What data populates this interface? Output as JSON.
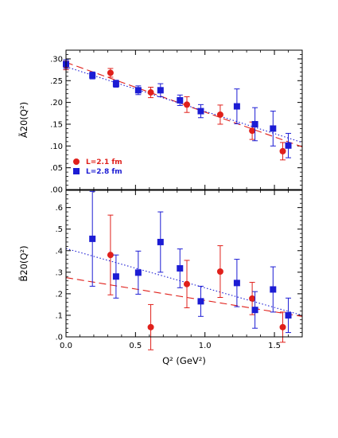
{
  "chart_data": [
    {
      "type": "scatter",
      "panel": "top",
      "ylabel": "Ã20(Q²)",
      "xlim": [
        0,
        1.7
      ],
      "ylim": [
        0,
        0.32
      ],
      "yticks": [
        0,
        0.05,
        0.1,
        0.15,
        0.2,
        0.25,
        0.3
      ],
      "ytick_labels": [
        ".00",
        ".05",
        ".10",
        ".15",
        ".20",
        ".25",
        ".30"
      ],
      "legend_position": "bottom-left",
      "series": [
        {
          "name": "L=2.1 fm",
          "color": "#e0201b",
          "marker": "circle",
          "points": [
            {
              "x": 0.0,
              "y": 0.285,
              "err": 0.01
            },
            {
              "x": 0.32,
              "y": 0.268,
              "err": 0.01
            },
            {
              "x": 0.61,
              "y": 0.223,
              "err": 0.012
            },
            {
              "x": 0.87,
              "y": 0.195,
              "err": 0.018
            },
            {
              "x": 1.11,
              "y": 0.172,
              "err": 0.022
            },
            {
              "x": 1.34,
              "y": 0.135,
              "err": 0.02
            },
            {
              "x": 1.56,
              "y": 0.088,
              "err": 0.02
            }
          ],
          "fit": {
            "style": "dashed",
            "x": [
              0.0,
              1.7
            ],
            "y": [
              0.292,
              0.098
            ]
          }
        },
        {
          "name": "L=2.8 fm",
          "color": "#1c1cd4",
          "marker": "square",
          "points": [
            {
              "x": 0.0,
              "y": 0.288,
              "err": 0.01
            },
            {
              "x": 0.19,
              "y": 0.262,
              "err": 0.008
            },
            {
              "x": 0.36,
              "y": 0.243,
              "err": 0.008
            },
            {
              "x": 0.52,
              "y": 0.228,
              "err": 0.01
            },
            {
              "x": 0.68,
              "y": 0.228,
              "err": 0.015
            },
            {
              "x": 0.82,
              "y": 0.205,
              "err": 0.012
            },
            {
              "x": 0.97,
              "y": 0.18,
              "err": 0.015
            },
            {
              "x": 1.23,
              "y": 0.191,
              "err": 0.04
            },
            {
              "x": 1.36,
              "y": 0.15,
              "err": 0.038
            },
            {
              "x": 1.49,
              "y": 0.14,
              "err": 0.04
            },
            {
              "x": 1.6,
              "y": 0.101,
              "err": 0.028
            }
          ],
          "fit": {
            "style": "dotted",
            "x": [
              0.0,
              1.7
            ],
            "y": [
              0.282,
              0.108
            ]
          }
        }
      ]
    },
    {
      "type": "scatter",
      "panel": "bottom",
      "ylabel": "B̃20(Q²)",
      "xlabel": "Q² (GeV²)",
      "xlim": [
        0,
        1.7
      ],
      "ylim": [
        0,
        0.68
      ],
      "xticks": [
        0,
        0.5,
        1.0,
        1.5
      ],
      "xtick_labels": [
        "0.0",
        "0.5",
        "1.0",
        "1.5"
      ],
      "yticks": [
        0,
        0.1,
        0.2,
        0.3,
        0.4,
        0.5,
        0.6
      ],
      "ytick_labels": [
        ".0",
        ".1",
        ".2",
        ".3",
        ".4",
        ".5",
        ".6"
      ],
      "series": [
        {
          "name": "L=2.1 fm",
          "color": "#e0201b",
          "marker": "circle",
          "points": [
            {
              "x": 0.32,
              "y": 0.38,
              "err": 0.185
            },
            {
              "x": 0.61,
              "y": 0.045,
              "err": 0.105
            },
            {
              "x": 0.87,
              "y": 0.245,
              "err": 0.11
            },
            {
              "x": 1.11,
              "y": 0.303,
              "err": 0.12
            },
            {
              "x": 1.34,
              "y": 0.178,
              "err": 0.075
            },
            {
              "x": 1.56,
              "y": 0.045,
              "err": 0.07
            }
          ],
          "fit": {
            "style": "dashed",
            "x": [
              0.0,
              1.7
            ],
            "y": [
              0.275,
              0.095
            ]
          }
        },
        {
          "name": "L=2.8 fm",
          "color": "#1c1cd4",
          "marker": "square",
          "points": [
            {
              "x": 0.19,
              "y": 0.455,
              "err": 0.22
            },
            {
              "x": 0.36,
              "y": 0.28,
              "err": 0.1
            },
            {
              "x": 0.52,
              "y": 0.298,
              "err": 0.1
            },
            {
              "x": 0.68,
              "y": 0.44,
              "err": 0.14
            },
            {
              "x": 0.82,
              "y": 0.318,
              "err": 0.09
            },
            {
              "x": 0.97,
              "y": 0.165,
              "err": 0.07
            },
            {
              "x": 1.23,
              "y": 0.25,
              "err": 0.11
            },
            {
              "x": 1.36,
              "y": 0.125,
              "err": 0.085
            },
            {
              "x": 1.49,
              "y": 0.22,
              "err": 0.105
            },
            {
              "x": 1.6,
              "y": 0.1,
              "err": 0.08
            }
          ],
          "fit": {
            "style": "dotted",
            "x": [
              0.0,
              1.7
            ],
            "y": [
              0.41,
              0.1
            ]
          }
        }
      ]
    }
  ]
}
